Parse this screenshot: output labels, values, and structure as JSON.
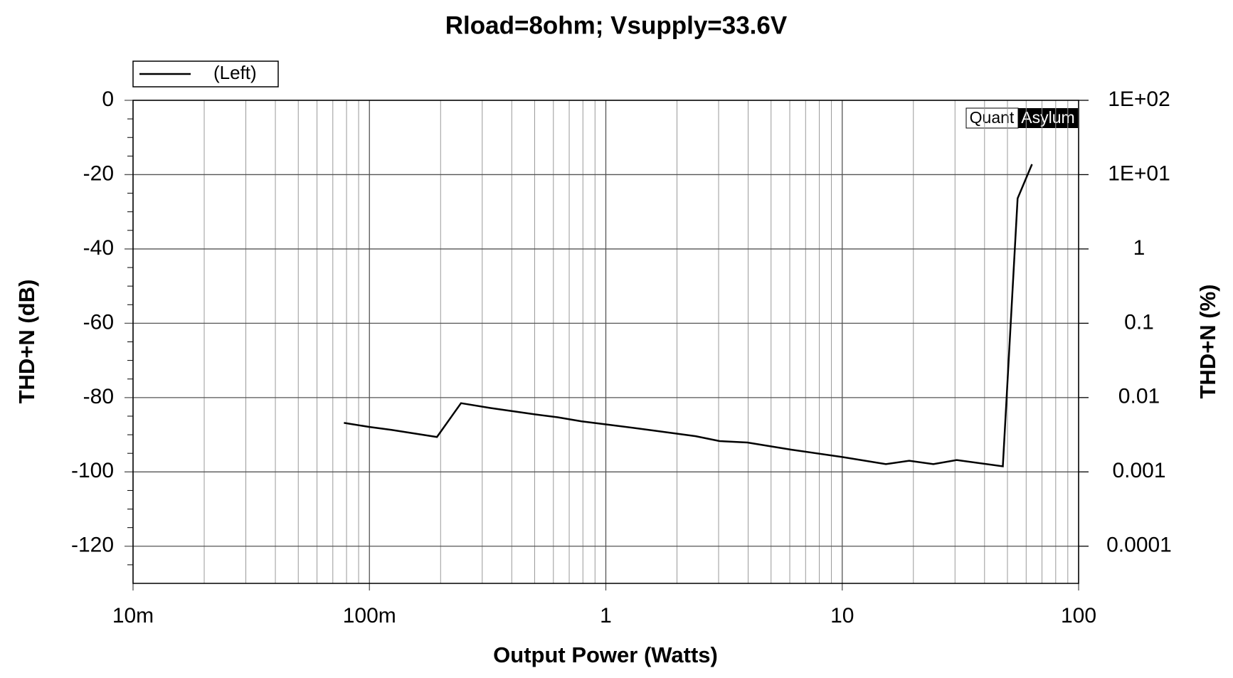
{
  "chart_data": {
    "type": "line",
    "title": "Rload=8ohm; Vsupply=33.6V",
    "x_label": "Output Power (Watts)",
    "y_label": "THD+N (dB)",
    "y2_label": "THD+N (%)",
    "annotations": [
      "Quant",
      "Asylum"
    ],
    "x_log": true,
    "y2_log": true,
    "grid": true,
    "legend": "top-left",
    "xlim": [
      0.01,
      100
    ],
    "xticks": [
      {
        "value": 0.01,
        "label": "10m"
      },
      {
        "value": 0.1,
        "label": "100m"
      },
      1,
      10,
      100
    ],
    "xminorticks": [
      0.02,
      0.03,
      0.04,
      0.05,
      0.06,
      0.07,
      0.08,
      0.09,
      0.2,
      0.3,
      0.4,
      0.5,
      0.6,
      0.7,
      0.8,
      0.9,
      2,
      3,
      4,
      5,
      6,
      7,
      8,
      9,
      20,
      30,
      40,
      50,
      60,
      70,
      80,
      90
    ],
    "ylim": [
      -130,
      0
    ],
    "yticks": [
      0,
      -20,
      -40,
      -60,
      -80,
      -100,
      -120
    ],
    "yminorticks": [
      -5,
      -10,
      -15,
      -25,
      -30,
      -35,
      -45,
      -50,
      -55,
      -65,
      -70,
      -75,
      -85,
      -90,
      -95,
      -105,
      -110,
      -115,
      -125
    ],
    "y2lim": [
      3.16e-05,
      100
    ],
    "y2ticks": [
      {
        "value": 100,
        "label": "1E+02"
      },
      {
        "value": 10,
        "label": "1E+01"
      },
      1,
      0.1,
      0.01,
      0.001,
      0.0001
    ],
    "x": [
      0.078,
      0.1,
      0.124,
      0.193,
      0.244,
      0.325,
      0.5,
      0.625,
      0.79,
      1.0,
      1.61,
      2.4,
      3.03,
      3.97,
      6.07,
      10,
      15.3,
      19.2,
      24.3,
      30.5,
      47.8,
      55.2,
      63.5
    ],
    "series": [
      {
        "name": "(Left)",
        "color": "#000000",
        "values": [
          -86.8,
          -87.9,
          -88.7,
          -90.6,
          -81.5,
          -82.8,
          -84.5,
          -85.3,
          -86.4,
          -87.2,
          -88.9,
          -90.4,
          -91.7,
          -92.1,
          -94.0,
          -96.0,
          -97.9,
          -97.0,
          -97.9,
          -96.8,
          -98.5,
          -26.4,
          -17.2
        ]
      }
    ]
  }
}
